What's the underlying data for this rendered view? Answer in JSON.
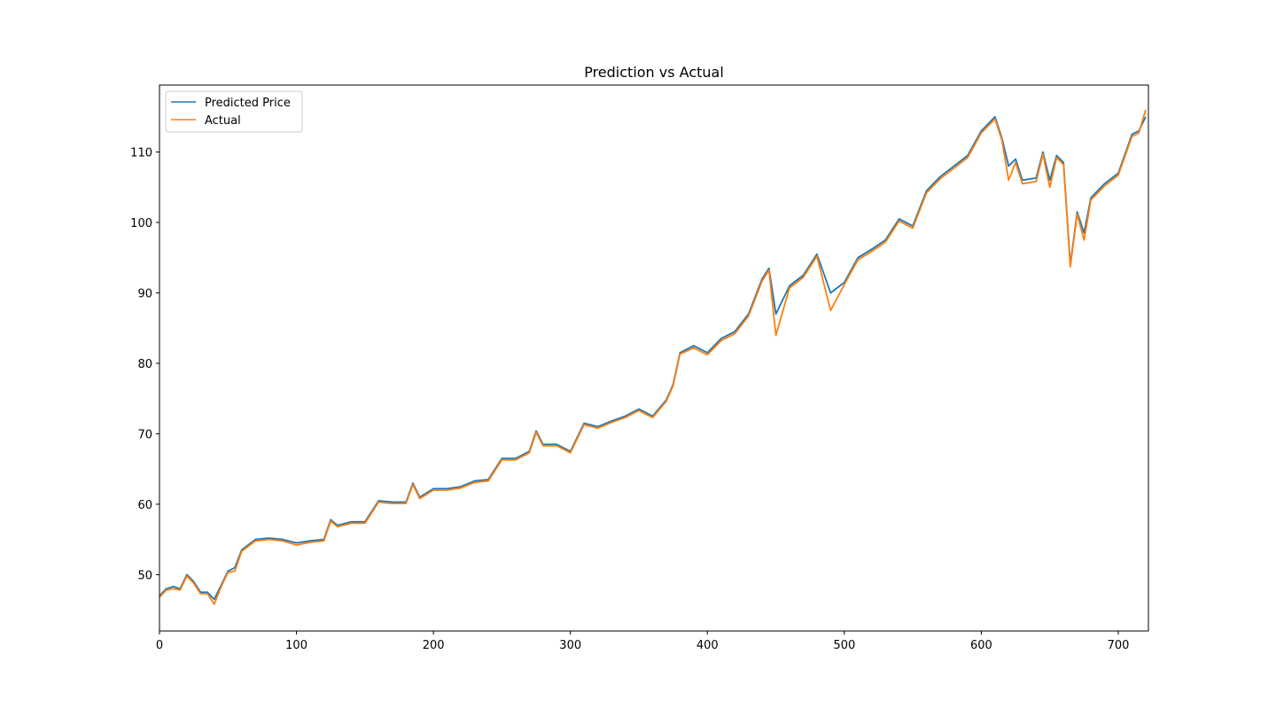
{
  "chart_data": {
    "type": "line",
    "title": "Prediction vs Actual",
    "xlabel": "",
    "ylabel": "",
    "xlim": [
      0,
      722
    ],
    "ylim": [
      42,
      119.5
    ],
    "xticks": [
      0,
      100,
      200,
      300,
      400,
      500,
      600,
      700
    ],
    "yticks": [
      50,
      60,
      70,
      80,
      90,
      100,
      110
    ],
    "grid": false,
    "legend_position": "top-left",
    "series": [
      {
        "name": "Predicted Price",
        "color": "#1f77b4",
        "x": [
          0,
          5,
          10,
          15,
          20,
          25,
          30,
          35,
          40,
          45,
          50,
          55,
          60,
          70,
          80,
          90,
          100,
          110,
          120,
          125,
          130,
          140,
          150,
          160,
          170,
          180,
          185,
          190,
          200,
          210,
          220,
          230,
          240,
          250,
          260,
          270,
          275,
          280,
          290,
          300,
          310,
          320,
          330,
          340,
          350,
          360,
          370,
          375,
          380,
          390,
          400,
          410,
          420,
          430,
          440,
          445,
          450,
          460,
          470,
          480,
          490,
          500,
          510,
          520,
          530,
          540,
          550,
          560,
          570,
          580,
          590,
          600,
          610,
          615,
          620,
          625,
          630,
          640,
          645,
          650,
          655,
          660,
          665,
          670,
          675,
          680,
          690,
          700,
          710,
          715,
          720
        ],
        "y": [
          47,
          48,
          48.3,
          48,
          50,
          49,
          47.5,
          47.5,
          46.5,
          48.5,
          50.5,
          51,
          53.5,
          55,
          55.2,
          55,
          54.5,
          54.8,
          55,
          57.8,
          57,
          57.5,
          57.5,
          60.5,
          60.3,
          60.3,
          63,
          61,
          62.2,
          62.2,
          62.5,
          63.3,
          63.5,
          66.5,
          66.5,
          67.5,
          70.4,
          68.5,
          68.5,
          67.5,
          71.5,
          71,
          71.8,
          72.5,
          73.5,
          72.5,
          74.8,
          77,
          81.5,
          82.5,
          81.5,
          83.5,
          84.5,
          87,
          92,
          93.5,
          87,
          91,
          92.5,
          95.5,
          90,
          91.5,
          95,
          96.2,
          97.5,
          100.5,
          99.5,
          104.5,
          106.5,
          108,
          109.5,
          113,
          115,
          112,
          108,
          109,
          106,
          106.3,
          110,
          106,
          109.5,
          108.5,
          94,
          101.5,
          98.5,
          103.5,
          105.5,
          107,
          112.5,
          113,
          115
        ]
      },
      {
        "name": "Actual",
        "color": "#ff7f0e",
        "x": [
          0,
          5,
          10,
          15,
          20,
          25,
          30,
          35,
          40,
          45,
          50,
          55,
          60,
          70,
          80,
          90,
          100,
          110,
          120,
          125,
          130,
          140,
          150,
          160,
          170,
          180,
          185,
          190,
          200,
          210,
          220,
          230,
          240,
          250,
          260,
          270,
          275,
          280,
          290,
          300,
          310,
          320,
          330,
          340,
          350,
          360,
          370,
          375,
          380,
          390,
          400,
          410,
          420,
          430,
          440,
          445,
          450,
          460,
          470,
          480,
          490,
          500,
          510,
          520,
          530,
          540,
          550,
          560,
          570,
          580,
          590,
          600,
          610,
          615,
          620,
          625,
          630,
          640,
          645,
          650,
          655,
          660,
          665,
          670,
          675,
          680,
          690,
          700,
          710,
          715,
          720
        ],
        "y": [
          46.8,
          47.8,
          48,
          47.8,
          49.8,
          48.8,
          47.3,
          47.3,
          45.8,
          48.3,
          50.3,
          50.5,
          53.3,
          54.8,
          55,
          54.8,
          54.2,
          54.6,
          54.8,
          57.6,
          56.8,
          57.3,
          57.3,
          60.3,
          60.1,
          60.1,
          62.8,
          60.8,
          62,
          62,
          62.3,
          63.1,
          63.3,
          66.3,
          66.3,
          67.3,
          70.2,
          68.3,
          68.3,
          67.3,
          71.3,
          70.8,
          71.6,
          72.3,
          73.3,
          72.3,
          74.6,
          76.8,
          81.3,
          82.2,
          81.2,
          83.2,
          84.2,
          86.7,
          91.7,
          93.2,
          84,
          90.7,
          92.2,
          95.2,
          87.5,
          91.2,
          94.7,
          95.9,
          97.2,
          100.2,
          99.2,
          104.2,
          106.2,
          107.7,
          109.2,
          112.7,
          114.7,
          111.7,
          106,
          108.5,
          105.5,
          105.8,
          109.7,
          105,
          109.2,
          108.2,
          93.7,
          101.2,
          97.5,
          103.2,
          105.2,
          106.7,
          112.2,
          112.7,
          116
        ]
      }
    ]
  }
}
